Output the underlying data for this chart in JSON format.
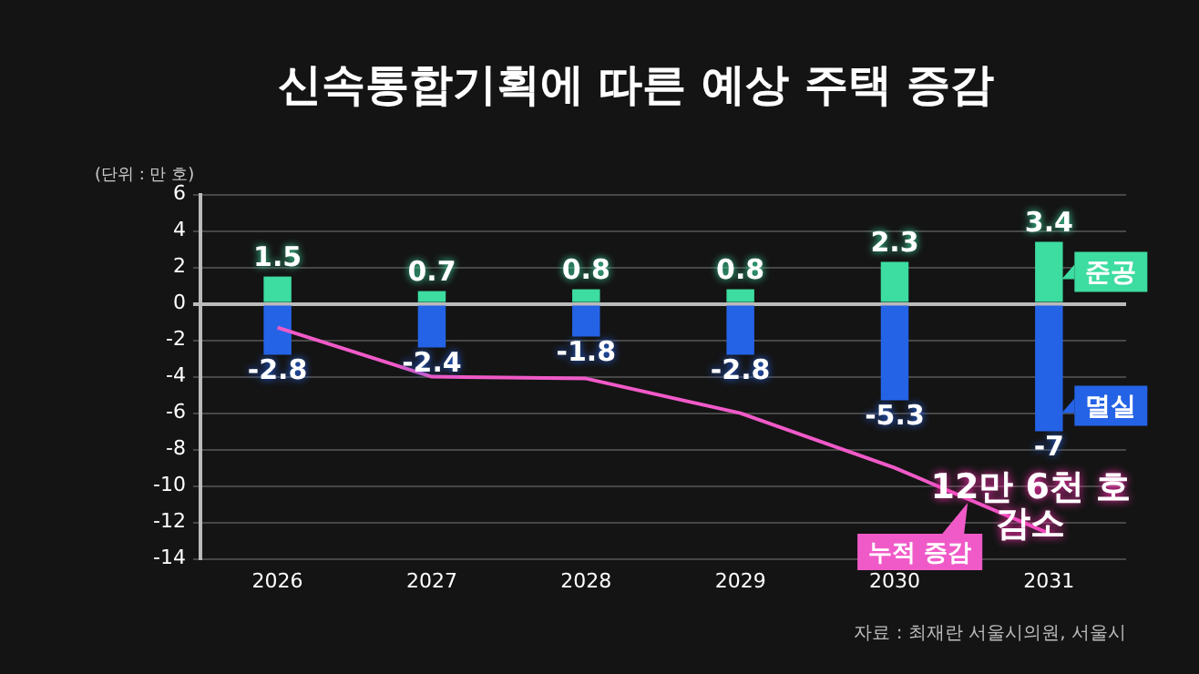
{
  "chart_data": {
    "type": "bar",
    "title": "신속통합기획에 따른 예상 주택 증감",
    "ylabel": "(단위 : 만 호)",
    "categories": [
      "2026",
      "2027",
      "2028",
      "2029",
      "2030",
      "2031"
    ],
    "stacked": true,
    "series": [
      {
        "name": "준공",
        "color": "#3ddca0",
        "values": [
          1.5,
          0.7,
          0.8,
          0.8,
          2.3,
          3.4
        ],
        "value_labels": [
          "1.5",
          "0.7",
          "0.8",
          "0.8",
          "2.3",
          "3.4"
        ]
      },
      {
        "name": "멸실",
        "color": "#2563e6",
        "values": [
          -2.8,
          -2.4,
          -1.8,
          -2.8,
          -5.3,
          -7
        ],
        "value_labels": [
          "-2.8",
          "-2.4",
          "-1.8",
          "-2.8",
          "-5.3",
          "-7"
        ]
      },
      {
        "name": "누적 증감",
        "type": "line",
        "color": "#f05ac8",
        "values": [
          -1.3,
          -4.0,
          -4.1,
          -6.0,
          -9.0,
          -12.6
        ]
      }
    ],
    "ylim": [
      -14,
      6
    ],
    "yticks": [
      -14,
      -12,
      -10,
      -8,
      -6,
      -4,
      -2,
      0,
      2,
      4,
      6
    ],
    "grid": "y",
    "legend": "right",
    "marker": "none",
    "annotations": [
      {
        "text": "12만 6천 호 감소",
        "x": "2031",
        "y": -12.6
      },
      "자료 : 최재란 서울시의원, 서울시"
    ]
  }
}
